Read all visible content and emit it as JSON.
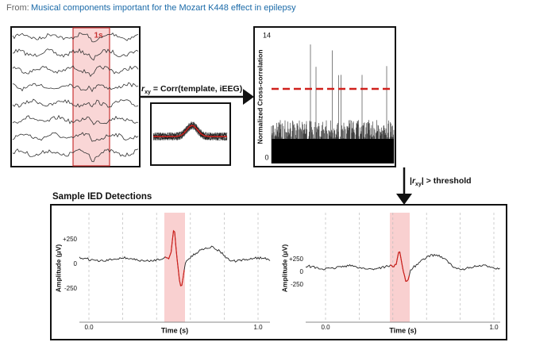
{
  "header": {
    "prefix": "From:",
    "link": "Musical components important for the Mozart K448 effect in epilepsy"
  },
  "eeg": {
    "window_label": "1s"
  },
  "equation": {
    "symbol": "r",
    "subscript": "xy",
    "text": "= Corr(template, iEEG)"
  },
  "xcorr": {
    "y_label": "Normalized Cross-correlation",
    "y_top": "14",
    "y_bottom": "0"
  },
  "threshold": {
    "prefix": "|",
    "symbol": "r",
    "subscript": "xy",
    "suffix": "| > threshold"
  },
  "detections": {
    "title": "Sample IED Detections",
    "panels": [
      {
        "y_label": "Amplitude (μV)",
        "yticks": [
          "+250",
          "0",
          "-250"
        ],
        "xticks": [
          "0.0",
          "1.0"
        ],
        "x_label": "Time (s)"
      },
      {
        "y_label": "Amplitude (μV)",
        "yticks": [
          "+250",
          "0",
          "-250"
        ],
        "xticks": [
          "0.0",
          "1.0"
        ],
        "x_label": "Time (s)"
      }
    ]
  }
}
